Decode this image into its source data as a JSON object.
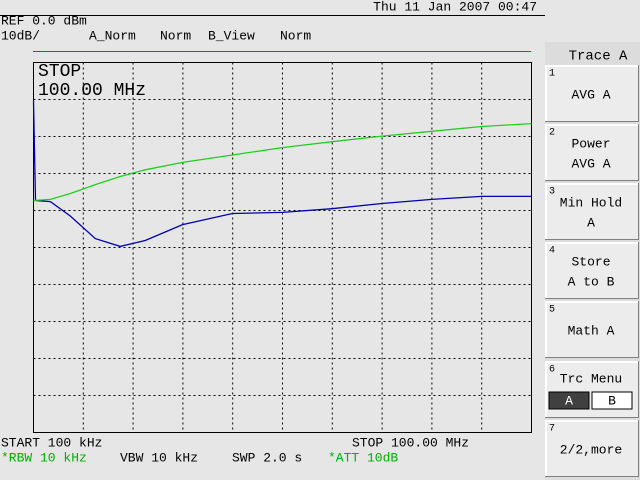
{
  "header": {
    "ref": "REF 0.0 dBm",
    "scale": "10dB/",
    "trace_a": "A_Norm",
    "norm_a": "Norm",
    "trace_b": "B_View",
    "norm_b": "Norm",
    "datetime": "Thu 11 Jan 2007 00:47"
  },
  "screen": {
    "status": "STOP",
    "marker": "100.00 MHz",
    "xlim": [
      0.1,
      100
    ],
    "ylim": [
      -100,
      0
    ],
    "traces": [
      {
        "color": "#0000b0",
        "x": [
          0.1,
          0.5,
          3.5,
          7.5,
          12.5,
          17.5,
          22.5,
          30,
          40,
          50,
          60,
          70,
          80,
          90,
          100
        ],
        "values": [
          -10.3,
          -37.3,
          -37.6,
          -41.5,
          -47.6,
          -49.7,
          -48.1,
          -43.8,
          -40.8,
          -40.5,
          -39.5,
          -38.1,
          -37.0,
          -36.2,
          -36.2
        ]
      },
      {
        "color": "#20d020",
        "x": [
          0.1,
          3.5,
          7.5,
          12.5,
          17.5,
          22.5,
          30,
          40,
          50,
          60,
          70,
          80,
          90,
          100
        ],
        "values": [
          -37.3,
          -37.0,
          -35.4,
          -33.0,
          -30.8,
          -29.0,
          -27.0,
          -25.0,
          -23.0,
          -21.4,
          -19.9,
          -18.6,
          -17.3,
          -16.5
        ]
      }
    ]
  },
  "footer": {
    "start": "START 100 kHz",
    "stop": "STOP 100.00 MHz",
    "rbw": "*RBW 10 kHz",
    "vbw": "VBW 10 kHz",
    "swp": "SWP 2.0 s",
    "att": "*ATT 10dB"
  },
  "menu": {
    "title": "Trace A",
    "keys": [
      {
        "number": "1",
        "lines": [
          "AVG A"
        ]
      },
      {
        "number": "2",
        "lines": [
          "Power",
          "AVG A"
        ]
      },
      {
        "number": "3",
        "lines": [
          "Min Hold",
          "A"
        ]
      },
      {
        "number": "4",
        "lines": [
          "Store",
          "A to B"
        ]
      },
      {
        "number": "5",
        "lines": [
          "Math A"
        ]
      },
      {
        "number": "6",
        "lines": [
          "Trc Menu"
        ],
        "options": [
          "A",
          "B"
        ]
      },
      {
        "number": "7",
        "lines": [
          "2/2,more"
        ]
      }
    ]
  }
}
